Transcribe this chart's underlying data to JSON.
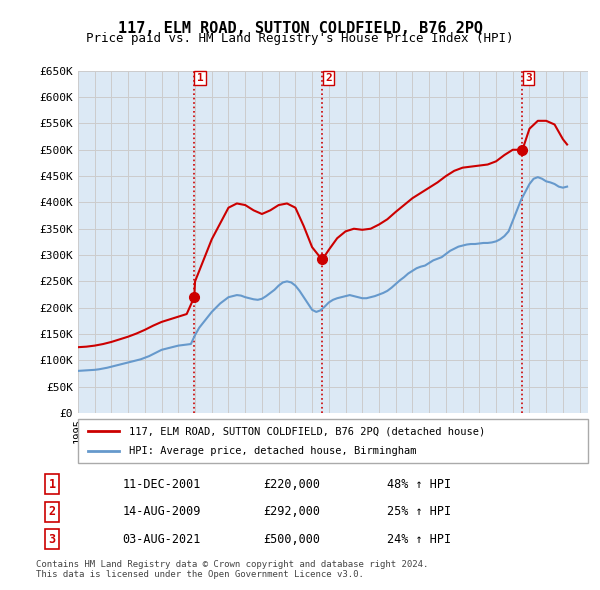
{
  "title": "117, ELM ROAD, SUTTON COLDFIELD, B76 2PQ",
  "subtitle": "Price paid vs. HM Land Registry's House Price Index (HPI)",
  "ylabel_ticks": [
    "£0",
    "£50K",
    "£100K",
    "£150K",
    "£200K",
    "£250K",
    "£300K",
    "£350K",
    "£400K",
    "£450K",
    "£500K",
    "£550K",
    "£600K",
    "£650K"
  ],
  "ylim": [
    0,
    650000
  ],
  "xlim_start": 1995.0,
  "xlim_end": 2025.5,
  "background_color": "#ffffff",
  "grid_color": "#cccccc",
  "plot_bg_color": "#dce9f5",
  "sale_dates": [
    2001.95,
    2009.62,
    2021.58
  ],
  "sale_prices": [
    220000,
    292000,
    500000
  ],
  "sale_labels": [
    "1",
    "2",
    "3"
  ],
  "vline_color": "#cc0000",
  "vline_style": ":",
  "red_line_color": "#cc0000",
  "blue_line_color": "#6699cc",
  "legend_red_label": "117, ELM ROAD, SUTTON COLDFIELD, B76 2PQ (detached house)",
  "legend_blue_label": "HPI: Average price, detached house, Birmingham",
  "table_rows": [
    [
      "1",
      "11-DEC-2001",
      "£220,000",
      "48% ↑ HPI"
    ],
    [
      "2",
      "14-AUG-2009",
      "£292,000",
      "25% ↑ HPI"
    ],
    [
      "3",
      "03-AUG-2021",
      "£500,000",
      "24% ↑ HPI"
    ]
  ],
  "footnote": "Contains HM Land Registry data © Crown copyright and database right 2024.\nThis data is licensed under the Open Government Licence v3.0.",
  "hpi_years": [
    1995.0,
    1995.25,
    1995.5,
    1995.75,
    1996.0,
    1996.25,
    1996.5,
    1996.75,
    1997.0,
    1997.25,
    1997.5,
    1997.75,
    1998.0,
    1998.25,
    1998.5,
    1998.75,
    1999.0,
    1999.25,
    1999.5,
    1999.75,
    2000.0,
    2000.25,
    2000.5,
    2000.75,
    2001.0,
    2001.25,
    2001.5,
    2001.75,
    2002.0,
    2002.25,
    2002.5,
    2002.75,
    2003.0,
    2003.25,
    2003.5,
    2003.75,
    2004.0,
    2004.25,
    2004.5,
    2004.75,
    2005.0,
    2005.25,
    2005.5,
    2005.75,
    2006.0,
    2006.25,
    2006.5,
    2006.75,
    2007.0,
    2007.25,
    2007.5,
    2007.75,
    2008.0,
    2008.25,
    2008.5,
    2008.75,
    2009.0,
    2009.25,
    2009.5,
    2009.75,
    2010.0,
    2010.25,
    2010.5,
    2010.75,
    2011.0,
    2011.25,
    2011.5,
    2011.75,
    2012.0,
    2012.25,
    2012.5,
    2012.75,
    2013.0,
    2013.25,
    2013.5,
    2013.75,
    2014.0,
    2014.25,
    2014.5,
    2014.75,
    2015.0,
    2015.25,
    2015.5,
    2015.75,
    2016.0,
    2016.25,
    2016.5,
    2016.75,
    2017.0,
    2017.25,
    2017.5,
    2017.75,
    2018.0,
    2018.25,
    2018.5,
    2018.75,
    2019.0,
    2019.25,
    2019.5,
    2019.75,
    2020.0,
    2020.25,
    2020.5,
    2020.75,
    2021.0,
    2021.25,
    2021.5,
    2021.75,
    2022.0,
    2022.25,
    2022.5,
    2022.75,
    2023.0,
    2023.25,
    2023.5,
    2023.75,
    2024.0,
    2024.25
  ],
  "hpi_values": [
    80000,
    80500,
    81000,
    81500,
    82000,
    83000,
    84500,
    86000,
    88000,
    90000,
    92000,
    94000,
    96000,
    98000,
    100000,
    102000,
    105000,
    108000,
    112000,
    116000,
    120000,
    122000,
    124000,
    126000,
    128000,
    129000,
    130000,
    131000,
    148000,
    162000,
    172000,
    182000,
    192000,
    200000,
    208000,
    214000,
    220000,
    222000,
    224000,
    223000,
    220000,
    218000,
    216000,
    215000,
    217000,
    222000,
    228000,
    234000,
    242000,
    248000,
    250000,
    248000,
    242000,
    232000,
    220000,
    208000,
    196000,
    192000,
    195000,
    202000,
    210000,
    215000,
    218000,
    220000,
    222000,
    224000,
    222000,
    220000,
    218000,
    218000,
    220000,
    222000,
    225000,
    228000,
    232000,
    238000,
    245000,
    252000,
    258000,
    265000,
    270000,
    275000,
    278000,
    280000,
    285000,
    290000,
    293000,
    296000,
    302000,
    308000,
    312000,
    316000,
    318000,
    320000,
    321000,
    321000,
    322000,
    323000,
    323000,
    324000,
    326000,
    330000,
    336000,
    345000,
    365000,
    385000,
    405000,
    420000,
    435000,
    445000,
    448000,
    445000,
    440000,
    438000,
    435000,
    430000,
    428000,
    430000
  ],
  "property_years": [
    1995.0,
    1995.5,
    1996.0,
    1996.5,
    1997.0,
    1997.5,
    1998.0,
    1998.5,
    1999.0,
    1999.5,
    2000.0,
    2000.5,
    2001.0,
    2001.5,
    2001.95,
    2002.0,
    2002.5,
    2003.0,
    2003.5,
    2004.0,
    2004.5,
    2005.0,
    2005.5,
    2006.0,
    2006.5,
    2007.0,
    2007.5,
    2008.0,
    2008.5,
    2009.0,
    2009.5,
    2009.62,
    2010.0,
    2010.5,
    2011.0,
    2011.5,
    2012.0,
    2012.5,
    2013.0,
    2013.5,
    2014.0,
    2014.5,
    2015.0,
    2015.5,
    2016.0,
    2016.5,
    2017.0,
    2017.5,
    2018.0,
    2018.5,
    2019.0,
    2019.5,
    2020.0,
    2020.5,
    2021.0,
    2021.58,
    2022.0,
    2022.5,
    2023.0,
    2023.5,
    2024.0,
    2024.25
  ],
  "property_values": [
    125000,
    126000,
    128000,
    131000,
    135000,
    140000,
    145000,
    151000,
    158000,
    166000,
    173000,
    178000,
    183000,
    188000,
    220000,
    250000,
    290000,
    330000,
    360000,
    390000,
    398000,
    395000,
    385000,
    378000,
    385000,
    395000,
    398000,
    390000,
    355000,
    315000,
    295000,
    292000,
    310000,
    332000,
    345000,
    350000,
    348000,
    350000,
    358000,
    368000,
    382000,
    395000,
    408000,
    418000,
    428000,
    438000,
    450000,
    460000,
    466000,
    468000,
    470000,
    472000,
    478000,
    490000,
    500000,
    500000,
    540000,
    555000,
    555000,
    548000,
    520000,
    510000
  ]
}
